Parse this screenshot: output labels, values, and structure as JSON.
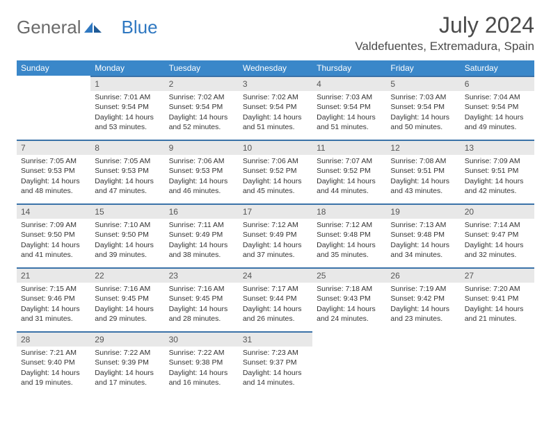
{
  "brand": {
    "general": "General",
    "blue": "Blue"
  },
  "title": "July 2024",
  "location": "Valdefuentes, Extremadura, Spain",
  "colors": {
    "header_bg": "#3a87c9",
    "header_text": "#ffffff",
    "daynum_bg": "#e8e8e8",
    "daynum_border": "#3a72a8",
    "text": "#333333",
    "brand_gray": "#6a6a6a",
    "brand_blue": "#2f78c1"
  },
  "weekdays": [
    "Sunday",
    "Monday",
    "Tuesday",
    "Wednesday",
    "Thursday",
    "Friday",
    "Saturday"
  ],
  "weeks": [
    [
      {
        "blank": true
      },
      {
        "n": "1",
        "sunrise": "Sunrise: 7:01 AM",
        "sunset": "Sunset: 9:54 PM",
        "daylight": "Daylight: 14 hours and 53 minutes."
      },
      {
        "n": "2",
        "sunrise": "Sunrise: 7:02 AM",
        "sunset": "Sunset: 9:54 PM",
        "daylight": "Daylight: 14 hours and 52 minutes."
      },
      {
        "n": "3",
        "sunrise": "Sunrise: 7:02 AM",
        "sunset": "Sunset: 9:54 PM",
        "daylight": "Daylight: 14 hours and 51 minutes."
      },
      {
        "n": "4",
        "sunrise": "Sunrise: 7:03 AM",
        "sunset": "Sunset: 9:54 PM",
        "daylight": "Daylight: 14 hours and 51 minutes."
      },
      {
        "n": "5",
        "sunrise": "Sunrise: 7:03 AM",
        "sunset": "Sunset: 9:54 PM",
        "daylight": "Daylight: 14 hours and 50 minutes."
      },
      {
        "n": "6",
        "sunrise": "Sunrise: 7:04 AM",
        "sunset": "Sunset: 9:54 PM",
        "daylight": "Daylight: 14 hours and 49 minutes."
      }
    ],
    [
      {
        "n": "7",
        "sunrise": "Sunrise: 7:05 AM",
        "sunset": "Sunset: 9:53 PM",
        "daylight": "Daylight: 14 hours and 48 minutes."
      },
      {
        "n": "8",
        "sunrise": "Sunrise: 7:05 AM",
        "sunset": "Sunset: 9:53 PM",
        "daylight": "Daylight: 14 hours and 47 minutes."
      },
      {
        "n": "9",
        "sunrise": "Sunrise: 7:06 AM",
        "sunset": "Sunset: 9:53 PM",
        "daylight": "Daylight: 14 hours and 46 minutes."
      },
      {
        "n": "10",
        "sunrise": "Sunrise: 7:06 AM",
        "sunset": "Sunset: 9:52 PM",
        "daylight": "Daylight: 14 hours and 45 minutes."
      },
      {
        "n": "11",
        "sunrise": "Sunrise: 7:07 AM",
        "sunset": "Sunset: 9:52 PM",
        "daylight": "Daylight: 14 hours and 44 minutes."
      },
      {
        "n": "12",
        "sunrise": "Sunrise: 7:08 AM",
        "sunset": "Sunset: 9:51 PM",
        "daylight": "Daylight: 14 hours and 43 minutes."
      },
      {
        "n": "13",
        "sunrise": "Sunrise: 7:09 AM",
        "sunset": "Sunset: 9:51 PM",
        "daylight": "Daylight: 14 hours and 42 minutes."
      }
    ],
    [
      {
        "n": "14",
        "sunrise": "Sunrise: 7:09 AM",
        "sunset": "Sunset: 9:50 PM",
        "daylight": "Daylight: 14 hours and 41 minutes."
      },
      {
        "n": "15",
        "sunrise": "Sunrise: 7:10 AM",
        "sunset": "Sunset: 9:50 PM",
        "daylight": "Daylight: 14 hours and 39 minutes."
      },
      {
        "n": "16",
        "sunrise": "Sunrise: 7:11 AM",
        "sunset": "Sunset: 9:49 PM",
        "daylight": "Daylight: 14 hours and 38 minutes."
      },
      {
        "n": "17",
        "sunrise": "Sunrise: 7:12 AM",
        "sunset": "Sunset: 9:49 PM",
        "daylight": "Daylight: 14 hours and 37 minutes."
      },
      {
        "n": "18",
        "sunrise": "Sunrise: 7:12 AM",
        "sunset": "Sunset: 9:48 PM",
        "daylight": "Daylight: 14 hours and 35 minutes."
      },
      {
        "n": "19",
        "sunrise": "Sunrise: 7:13 AM",
        "sunset": "Sunset: 9:48 PM",
        "daylight": "Daylight: 14 hours and 34 minutes."
      },
      {
        "n": "20",
        "sunrise": "Sunrise: 7:14 AM",
        "sunset": "Sunset: 9:47 PM",
        "daylight": "Daylight: 14 hours and 32 minutes."
      }
    ],
    [
      {
        "n": "21",
        "sunrise": "Sunrise: 7:15 AM",
        "sunset": "Sunset: 9:46 PM",
        "daylight": "Daylight: 14 hours and 31 minutes."
      },
      {
        "n": "22",
        "sunrise": "Sunrise: 7:16 AM",
        "sunset": "Sunset: 9:45 PM",
        "daylight": "Daylight: 14 hours and 29 minutes."
      },
      {
        "n": "23",
        "sunrise": "Sunrise: 7:16 AM",
        "sunset": "Sunset: 9:45 PM",
        "daylight": "Daylight: 14 hours and 28 minutes."
      },
      {
        "n": "24",
        "sunrise": "Sunrise: 7:17 AM",
        "sunset": "Sunset: 9:44 PM",
        "daylight": "Daylight: 14 hours and 26 minutes."
      },
      {
        "n": "25",
        "sunrise": "Sunrise: 7:18 AM",
        "sunset": "Sunset: 9:43 PM",
        "daylight": "Daylight: 14 hours and 24 minutes."
      },
      {
        "n": "26",
        "sunrise": "Sunrise: 7:19 AM",
        "sunset": "Sunset: 9:42 PM",
        "daylight": "Daylight: 14 hours and 23 minutes."
      },
      {
        "n": "27",
        "sunrise": "Sunrise: 7:20 AM",
        "sunset": "Sunset: 9:41 PM",
        "daylight": "Daylight: 14 hours and 21 minutes."
      }
    ],
    [
      {
        "n": "28",
        "sunrise": "Sunrise: 7:21 AM",
        "sunset": "Sunset: 9:40 PM",
        "daylight": "Daylight: 14 hours and 19 minutes."
      },
      {
        "n": "29",
        "sunrise": "Sunrise: 7:22 AM",
        "sunset": "Sunset: 9:39 PM",
        "daylight": "Daylight: 14 hours and 17 minutes."
      },
      {
        "n": "30",
        "sunrise": "Sunrise: 7:22 AM",
        "sunset": "Sunset: 9:38 PM",
        "daylight": "Daylight: 14 hours and 16 minutes."
      },
      {
        "n": "31",
        "sunrise": "Sunrise: 7:23 AM",
        "sunset": "Sunset: 9:37 PM",
        "daylight": "Daylight: 14 hours and 14 minutes."
      },
      {
        "blank": true
      },
      {
        "blank": true
      },
      {
        "blank": true
      }
    ]
  ]
}
